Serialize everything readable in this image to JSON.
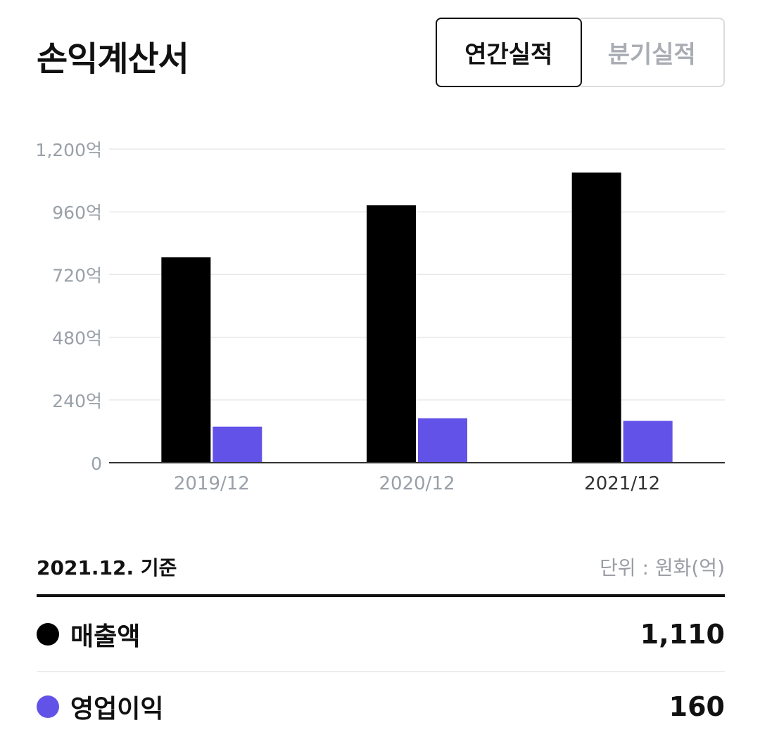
{
  "header": {
    "title": "손익계산서",
    "tabs": [
      {
        "label": "연간실적",
        "active": true
      },
      {
        "label": "분기실적",
        "active": false
      }
    ]
  },
  "colors": {
    "revenue": "#000000",
    "operating_profit": "#6352e8",
    "grid": "#e6e8eb",
    "axis": "#333333",
    "tick_label": "#9aa0a8",
    "active_tick_label": "#333333"
  },
  "chart_data": {
    "type": "bar",
    "categories": [
      "2019/12",
      "2020/12",
      "2021/12"
    ],
    "highlighted_category": "2021/12",
    "series": [
      {
        "key": "revenue",
        "values": [
          786,
          985,
          1110
        ]
      },
      {
        "key": "operating_profit",
        "values": [
          138,
          170,
          160
        ]
      }
    ],
    "ylim": [
      0,
      1200
    ],
    "yticks": [
      {
        "value": 0,
        "label": "0"
      },
      {
        "value": 240,
        "label": "240억"
      },
      {
        "value": 480,
        "label": "480억"
      },
      {
        "value": 720,
        "label": "720억"
      },
      {
        "value": 960,
        "label": "960억"
      },
      {
        "value": 1200,
        "label": "1,200억"
      }
    ],
    "grid": true
  },
  "summary": {
    "basis": "2021.12. 기준",
    "unit": "단위 : 원화(억)",
    "rows": [
      {
        "label": "매출액",
        "value": "1,110",
        "color_key": "revenue"
      },
      {
        "label": "영업이익",
        "value": "160",
        "color_key": "operating_profit"
      }
    ]
  }
}
